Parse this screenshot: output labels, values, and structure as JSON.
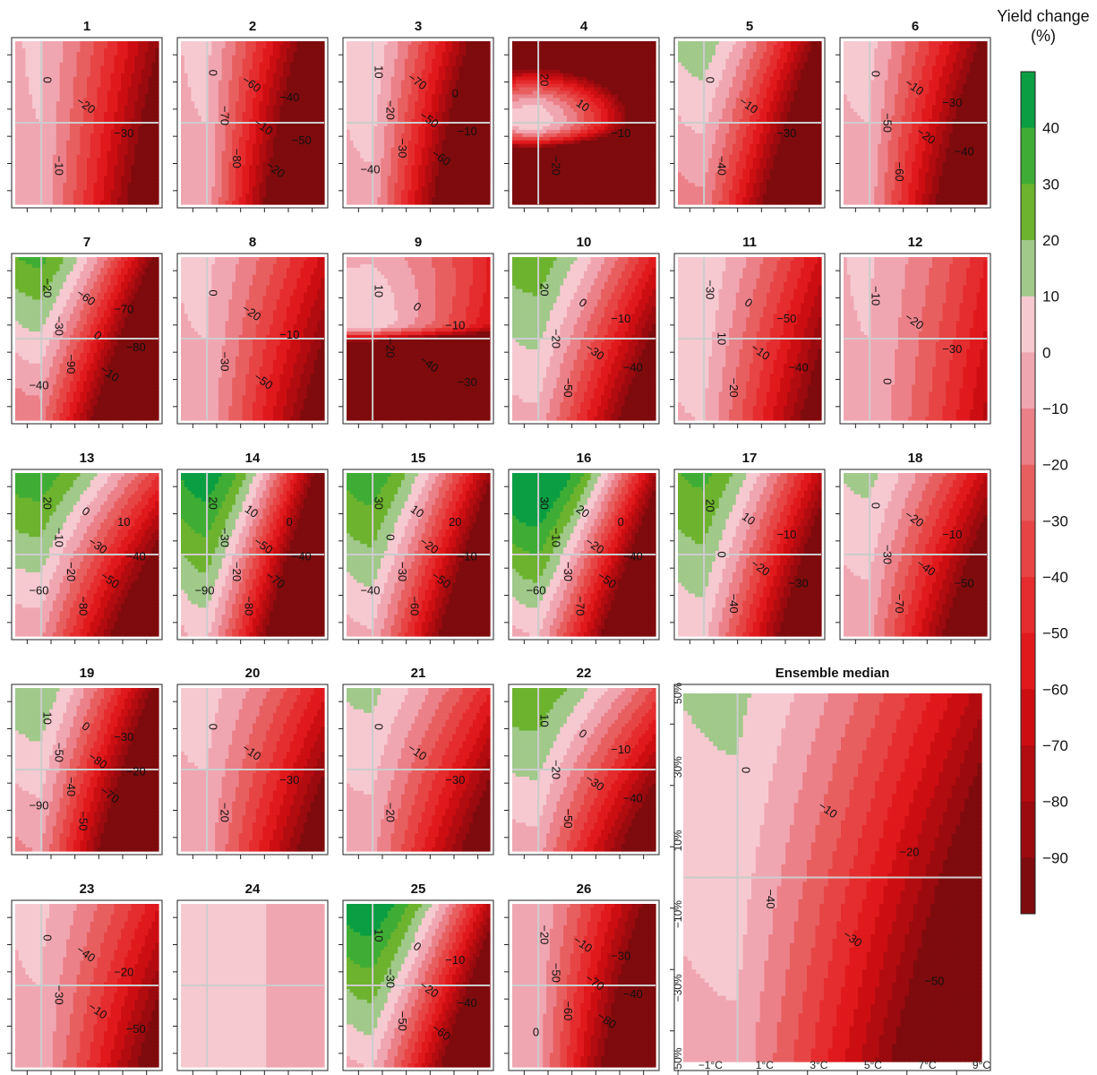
{
  "chart_data": {
    "type": "heatmap",
    "subtype": "filled-contour small multiples",
    "x_axis": {
      "quantity": "temperature change",
      "tick_labels": [
        "−1°C",
        "1°C",
        "3°C",
        "5°C",
        "7°C",
        "9°C"
      ],
      "range": [
        -2,
        9
      ]
    },
    "y_axis": {
      "quantity": "precipitation change",
      "tick_labels": [
        "−50%",
        "−30%",
        "−10%",
        "10%",
        "30%",
        "50%"
      ],
      "range": [
        -50,
        50
      ]
    },
    "reference_lines": {
      "x": 0,
      "y": 0,
      "color": "#cccccc"
    },
    "grid": false,
    "colorbar": {
      "title": "Yield change\n(%)",
      "tick_labels": [
        "40",
        "30",
        "20",
        "10",
        "0",
        "−10",
        "−20",
        "−30",
        "−40",
        "−50",
        "−60",
        "−70",
        "−80",
        "−90"
      ],
      "levels": [
        50,
        40,
        30,
        20,
        10,
        0,
        -10,
        -20,
        -30,
        -40,
        -50,
        -60,
        -70,
        -80,
        -90,
        -100
      ],
      "colors": [
        "#0b9e43",
        "#3fad35",
        "#6db32e",
        "#a0c98a",
        "#f6c9d0",
        "#f0a6b1",
        "#eb8088",
        "#e85f60",
        "#e74545",
        "#e52c2e",
        "#e0191d",
        "#cc0e12",
        "#b20c10",
        "#9a0a0e",
        "#7e0b0d"
      ],
      "placement": "right"
    },
    "panels": [
      {
        "title": "1",
        "labels": [
          "0",
          "−20",
          "−30",
          "−10"
        ]
      },
      {
        "title": "2",
        "labels": [
          "0",
          "−60",
          "−40",
          "−70",
          "−10",
          "−50",
          "−80",
          "−20"
        ]
      },
      {
        "title": "3",
        "labels": [
          "10",
          "−70",
          "0",
          "−20",
          "−50",
          "−10",
          "−30",
          "−60",
          "−40"
        ]
      },
      {
        "title": "4",
        "labels": [
          "20",
          "10",
          "−10",
          "−20"
        ]
      },
      {
        "title": "5",
        "labels": [
          "0",
          "−10",
          "−30",
          "−40"
        ]
      },
      {
        "title": "6",
        "labels": [
          "0",
          "−10",
          "−30",
          "−50",
          "−20",
          "−40",
          "−60"
        ]
      },
      {
        "title": "7",
        "labels": [
          "−20",
          "−60",
          "−70",
          "−30",
          "0",
          "−80",
          "−90",
          "−10",
          "−40"
        ]
      },
      {
        "title": "8",
        "labels": [
          "0",
          "−20",
          "−10",
          "−30",
          "−50"
        ]
      },
      {
        "title": "9",
        "labels": [
          "10",
          "0",
          "−10",
          "−20",
          "−40",
          "−30"
        ]
      },
      {
        "title": "10",
        "labels": [
          "20",
          "0",
          "−10",
          "−20",
          "−30",
          "−40",
          "−50"
        ]
      },
      {
        "title": "11",
        "labels": [
          "−30",
          "0",
          "−50",
          "10",
          "−10",
          "−40",
          "−20"
        ]
      },
      {
        "title": "12",
        "labels": [
          "−10",
          "−20",
          "−30",
          "0"
        ]
      },
      {
        "title": "13",
        "labels": [
          "20",
          "0",
          "10",
          "−10",
          "−30",
          "−40",
          "−20",
          "−50",
          "−60",
          "−80"
        ]
      },
      {
        "title": "14",
        "labels": [
          "20",
          "10",
          "0",
          "−30",
          "−50",
          "−40",
          "−20",
          "−70",
          "−90",
          "−80"
        ]
      },
      {
        "title": "15",
        "labels": [
          "30",
          "10",
          "20",
          "0",
          "−20",
          "−10",
          "−30",
          "−50",
          "−40",
          "−60"
        ]
      },
      {
        "title": "16",
        "labels": [
          "30",
          "20",
          "0",
          "−10",
          "−20",
          "−40",
          "−30",
          "−50",
          "−60",
          "−70"
        ]
      },
      {
        "title": "17",
        "labels": [
          "20",
          "10",
          "−10",
          "0",
          "−20",
          "−30",
          "−40"
        ]
      },
      {
        "title": "18",
        "labels": [
          "0",
          "−20",
          "−10",
          "−30",
          "−40",
          "−50",
          "−70"
        ]
      },
      {
        "title": "19",
        "labels": [
          "10",
          "0",
          "−30",
          "−50",
          "−80",
          "−20",
          "−40",
          "−70",
          "−90",
          "−50"
        ]
      },
      {
        "title": "20",
        "labels": [
          "0",
          "−10",
          "−30",
          "−20"
        ]
      },
      {
        "title": "21",
        "labels": [
          "0",
          "−10",
          "−30",
          "−20"
        ]
      },
      {
        "title": "22",
        "labels": [
          "10",
          "0",
          "−10",
          "−20",
          "−30",
          "−40",
          "−50"
        ]
      },
      {
        "title": "23",
        "labels": [
          "0",
          "−40",
          "−20",
          "−30",
          "−10",
          "−50"
        ]
      },
      {
        "title": "24",
        "labels": []
      },
      {
        "title": "25",
        "labels": [
          "10",
          "0",
          "−10",
          "−30",
          "−20",
          "−40",
          "−50",
          "−60"
        ]
      },
      {
        "title": "26",
        "labels": [
          "−20",
          "−10",
          "−30",
          "−50",
          "−70",
          "−40",
          "−60",
          "−80",
          "0"
        ]
      },
      {
        "title": "Ensemble median",
        "labels": [
          "0",
          "−10",
          "−20",
          "−40",
          "−30",
          "−50"
        ]
      }
    ]
  }
}
